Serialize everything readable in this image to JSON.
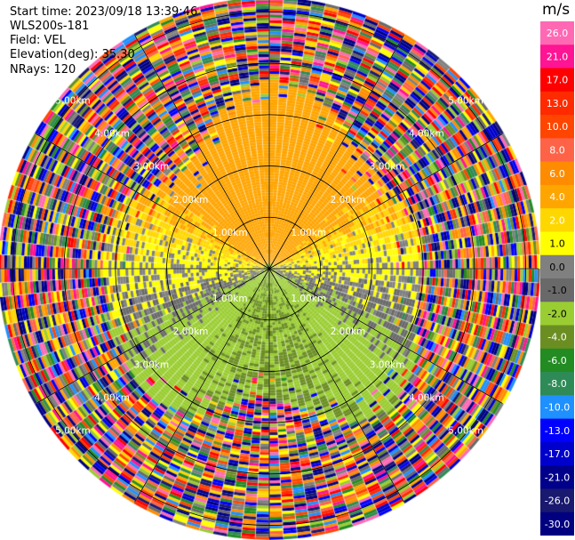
{
  "header": {
    "start_time_label": "Start time:",
    "start_time": "2023/09/18 13:39:46",
    "instrument": "WLS200s-181",
    "field_label": "Field:",
    "field": "VEL",
    "elevation_label": "Elevation(deg):",
    "elevation": "35.30",
    "nrays_label": "NRays:",
    "nrays": "120"
  },
  "chart_data": {
    "type": "heatmap",
    "projection": "polar PPI scan",
    "field": "VEL",
    "units": "m/s",
    "nrays": 120,
    "range_rings_km": [
      1.0,
      2.0,
      3.0,
      4.0,
      5.0
    ],
    "range_ring_labels": [
      "1.00km",
      "2.00km",
      "3.00km",
      "4.00km",
      "5.00km"
    ],
    "max_range_km": 5.25,
    "spokes_deg": [
      0,
      30,
      60,
      90,
      120,
      150,
      180,
      210,
      240,
      270,
      300,
      330
    ],
    "colorbar": {
      "title": "m/s",
      "levels": [
        26.0,
        21.0,
        17.0,
        13.0,
        10.0,
        8.0,
        6.0,
        4.0,
        2.0,
        1.0,
        0.0,
        -1.0,
        -2.0,
        -4.0,
        -6.0,
        -8.0,
        -10.0,
        -13.0,
        -17.0,
        -21.0,
        -26.0,
        -30.0
      ],
      "tick_labels": [
        "26.0",
        "21.0",
        "17.0",
        "13.0",
        "10.0",
        "8.0",
        "6.0",
        "4.0",
        "2.0",
        "1.0",
        "0.0",
        "-1.0",
        "-2.0",
        "-4.0",
        "-6.0",
        "-8.0",
        "-10.0",
        "-13.0",
        "-17.0",
        "-21.0",
        "-26.0",
        "-30.0"
      ],
      "colors": [
        "#ff69b4",
        "#ff1493",
        "#ff0000",
        "#ff2a00",
        "#ff4500",
        "#ff6347",
        "#ff8c00",
        "#ffa500",
        "#ffd700",
        "#ffff00",
        "#808080",
        "#696969",
        "#9acd32",
        "#6b8e23",
        "#228b22",
        "#2e8b57",
        "#1e90ff",
        "#0000ff",
        "#0000cd",
        "#00008b",
        "#191970",
        "#000080"
      ]
    },
    "velocity_pattern": {
      "inner_zone_km": [
        0.0,
        0.12
      ],
      "clean_data_max_km": 3.1,
      "noise_start_km": 3.1,
      "receding_sector": "north, values 2.0 to 4.0 m/s (yellow)",
      "zero_sector": "east and west, values 0.0 to -1.0 m/s (grey)",
      "approaching_sector": "south, values -2.0 to -6.0 m/s (green/olive)",
      "noise": "beyond about 3 km, random colors across the full scale"
    }
  }
}
